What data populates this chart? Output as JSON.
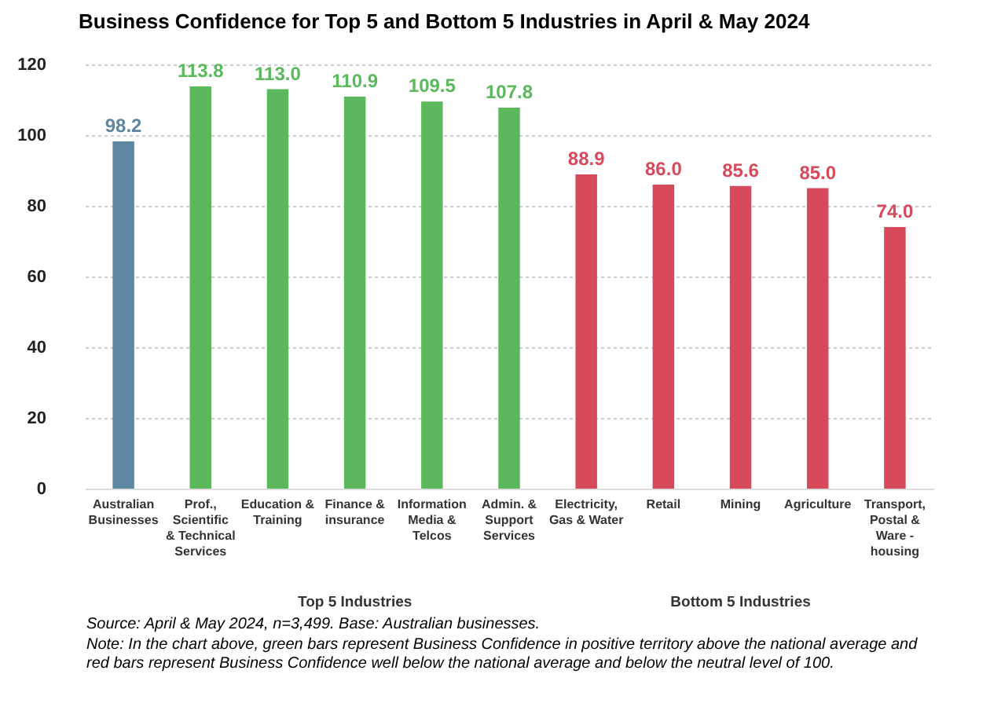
{
  "chart_data": {
    "type": "bar",
    "title": "Business Confidence for Top 5 and Bottom 5 Industries in April & May 2024",
    "categories": [
      "Australian Businesses",
      "Prof., Scientific & Technical Services",
      "Education & Training",
      "Finance & insurance",
      "Information Media & Telcos",
      "Admin. & Support Services",
      "Electricity, Gas & Water",
      "Retail",
      "Mining",
      "Agriculture",
      "Transport, Postal & Ware - housing"
    ],
    "values": [
      98.2,
      113.8,
      113.0,
      110.9,
      109.5,
      107.8,
      88.9,
      86.0,
      85.6,
      85.0,
      74.0
    ],
    "colors": [
      "#5d87a1",
      "#5cb85c",
      "#5cb85c",
      "#5cb85c",
      "#5cb85c",
      "#5cb85c",
      "#d64a5b",
      "#d64a5b",
      "#d64a5b",
      "#d64a5b",
      "#d64a5b"
    ],
    "value_labels": [
      "98.2",
      "113.8",
      "113.0",
      "110.9",
      "109.5",
      "107.8",
      "88.9",
      "86.0",
      "85.6",
      "85.0",
      "74.0"
    ],
    "ylim": [
      0,
      120
    ],
    "yticks": [
      0,
      20,
      40,
      60,
      80,
      100,
      120
    ],
    "grid": "y",
    "annotations": [
      "Top 5 Industries",
      "Bottom 5 Industries",
      "Source: April & May 2024, n=3,499. Base: Australian businesses.",
      "Note: In the chart above, green bars represent Business Confidence in positive territory above the national average and red bars represent Business Confidence well below the national average and below the neutral level of 100."
    ]
  }
}
